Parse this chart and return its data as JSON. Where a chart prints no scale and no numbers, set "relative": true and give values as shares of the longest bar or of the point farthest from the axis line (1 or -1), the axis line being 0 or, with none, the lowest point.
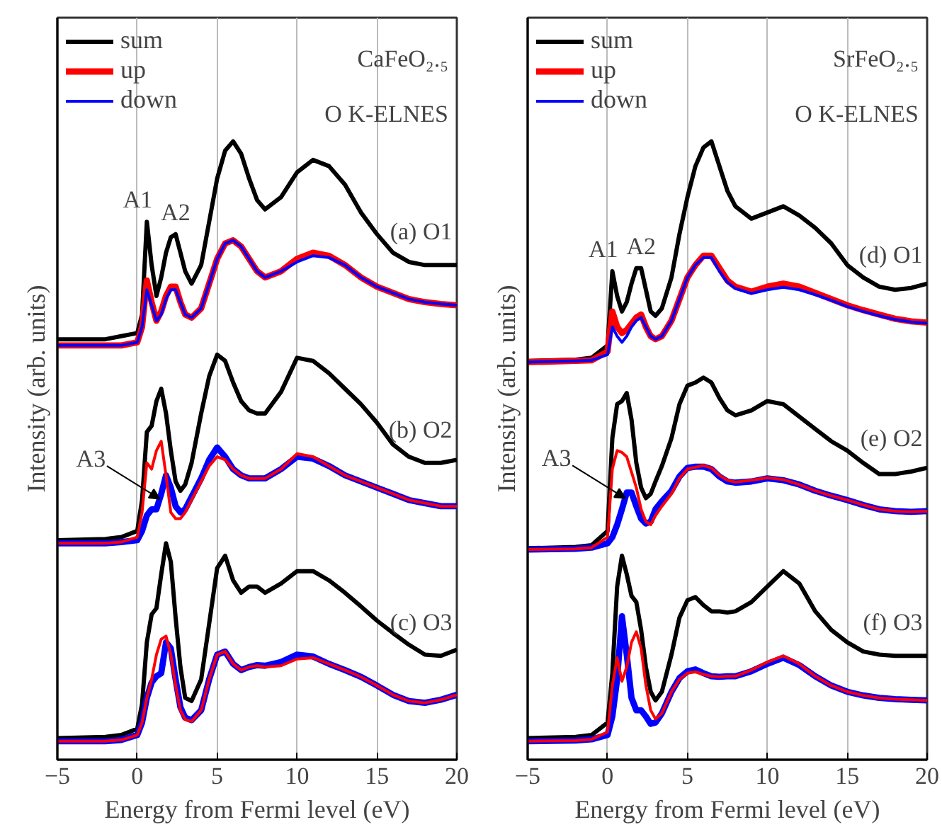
{
  "chart_data": [
    {
      "type": "line",
      "xlabel": "Energy from Fermi level (eV)",
      "ylabel": "Intensity (arb. units)",
      "relative": true,
      "xlim": [
        -5,
        20
      ],
      "xticks": [
        -5,
        0,
        5,
        10,
        15,
        20
      ],
      "grid": "x",
      "legend": "top left",
      "x": [
        -5,
        -2,
        -1,
        0,
        0.3,
        0.6,
        0.9,
        1.2,
        1.5,
        1.8,
        2.1,
        2.4,
        2.7,
        3,
        3.4,
        4,
        4.5,
        5,
        5.5,
        6,
        6.5,
        7,
        7.5,
        8,
        9,
        10,
        11,
        12,
        13,
        14,
        15,
        16,
        17,
        18,
        19,
        20
      ],
      "series": [
        {
          "name": "sum",
          "color": "#000000",
          "values": [
            0.68,
            0.68,
            0.685,
            0.69,
            0.72,
            0.87,
            0.8,
            0.75,
            0.78,
            0.82,
            0.845,
            0.85,
            0.82,
            0.79,
            0.77,
            0.8,
            0.87,
            0.94,
            0.985,
            1.0,
            0.98,
            0.94,
            0.905,
            0.89,
            0.91,
            0.95,
            0.97,
            0.96,
            0.93,
            0.885,
            0.85,
            0.82,
            0.805,
            0.8,
            0.8,
            0.8
          ]
        },
        {
          "name": "up",
          "color": "#ff0000",
          "values": [
            0.67,
            0.67,
            0.67,
            0.675,
            0.7,
            0.775,
            0.74,
            0.71,
            0.725,
            0.75,
            0.765,
            0.765,
            0.74,
            0.72,
            0.715,
            0.73,
            0.77,
            0.81,
            0.835,
            0.84,
            0.83,
            0.81,
            0.79,
            0.78,
            0.79,
            0.81,
            0.82,
            0.815,
            0.8,
            0.78,
            0.765,
            0.755,
            0.745,
            0.74,
            0.737,
            0.735
          ]
        },
        {
          "name": "down",
          "color": "#0000ff",
          "values": [
            0.67,
            0.67,
            0.67,
            0.675,
            0.7,
            0.76,
            0.735,
            0.71,
            0.72,
            0.745,
            0.76,
            0.76,
            0.74,
            0.72,
            0.715,
            0.73,
            0.77,
            0.81,
            0.835,
            0.84,
            0.83,
            0.81,
            0.79,
            0.78,
            0.79,
            0.805,
            0.815,
            0.812,
            0.8,
            0.78,
            0.765,
            0.755,
            0.745,
            0.74,
            0.737,
            0.735
          ]
        },
        {
          "color": "#000000",
          "values": [
            0.355,
            0.357,
            0.36,
            0.37,
            0.42,
            0.53,
            0.54,
            0.58,
            0.6,
            0.56,
            0.5,
            0.45,
            0.435,
            0.445,
            0.48,
            0.56,
            0.62,
            0.655,
            0.645,
            0.61,
            0.58,
            0.565,
            0.56,
            0.56,
            0.595,
            0.65,
            0.645,
            0.625,
            0.6,
            0.575,
            0.545,
            0.51,
            0.49,
            0.48,
            0.48,
            0.485
          ]
        },
        {
          "color": "#0000ff",
          "values": [
            0.35,
            0.35,
            0.352,
            0.355,
            0.37,
            0.395,
            0.405,
            0.405,
            0.43,
            0.46,
            0.44,
            0.41,
            0.4,
            0.405,
            0.425,
            0.455,
            0.485,
            0.505,
            0.49,
            0.47,
            0.46,
            0.455,
            0.455,
            0.455,
            0.47,
            0.49,
            0.487,
            0.475,
            0.46,
            0.45,
            0.44,
            0.43,
            0.42,
            0.415,
            0.41,
            0.41
          ]
        },
        {
          "color": "#ff0000",
          "values": [
            0.35,
            0.35,
            0.352,
            0.36,
            0.4,
            0.48,
            0.47,
            0.5,
            0.515,
            0.46,
            0.4,
            0.39,
            0.39,
            0.4,
            0.42,
            0.45,
            0.475,
            0.49,
            0.485,
            0.47,
            0.46,
            0.455,
            0.455,
            0.455,
            0.47,
            0.495,
            0.49,
            0.475,
            0.46,
            0.45,
            0.44,
            0.43,
            0.42,
            0.415,
            0.41,
            0.41
          ]
        },
        {
          "color": "#000000",
          "values": [
            0.035,
            0.037,
            0.04,
            0.05,
            0.09,
            0.19,
            0.235,
            0.245,
            0.3,
            0.35,
            0.32,
            0.23,
            0.15,
            0.1,
            0.095,
            0.13,
            0.22,
            0.31,
            0.33,
            0.29,
            0.27,
            0.28,
            0.28,
            0.27,
            0.285,
            0.305,
            0.305,
            0.29,
            0.27,
            0.248,
            0.225,
            0.205,
            0.186,
            0.17,
            0.168,
            0.178
          ]
        },
        {
          "color": "#0000ff",
          "values": [
            0.03,
            0.03,
            0.032,
            0.04,
            0.06,
            0.1,
            0.125,
            0.135,
            0.14,
            0.19,
            0.18,
            0.13,
            0.085,
            0.068,
            0.064,
            0.08,
            0.13,
            0.17,
            0.175,
            0.155,
            0.145,
            0.15,
            0.153,
            0.152,
            0.158,
            0.17,
            0.167,
            0.155,
            0.145,
            0.134,
            0.12,
            0.105,
            0.095,
            0.092,
            0.097,
            0.105
          ]
        },
        {
          "color": "#ff0000",
          "values": [
            0.03,
            0.03,
            0.032,
            0.04,
            0.06,
            0.1,
            0.13,
            0.17,
            0.195,
            0.2,
            0.17,
            0.12,
            0.08,
            0.065,
            0.062,
            0.08,
            0.13,
            0.17,
            0.175,
            0.155,
            0.145,
            0.15,
            0.152,
            0.15,
            0.152,
            0.163,
            0.165,
            0.155,
            0.145,
            0.134,
            0.12,
            0.105,
            0.095,
            0.092,
            0.097,
            0.105
          ]
        }
      ],
      "annotations": [
        "CaFeO₂.₅",
        "O K-ELNES",
        {
          "text": "A1",
          "x": 0.6,
          "y": 0.87
        },
        {
          "text": "A2",
          "x": 2.4,
          "y": 0.85
        },
        {
          "text": "(a) O1",
          "x": 19,
          "y": 0.8
        },
        {
          "text": "(b) O2",
          "x": 19,
          "y": 0.48
        },
        {
          "text": "A3",
          "x": 1.4,
          "y": 0.422
        },
        {
          "text": "(c) O3",
          "x": 19,
          "y": 0.168
        }
      ]
    },
    {
      "type": "line",
      "xlabel": "Energy from Fermi level (eV)",
      "ylabel": "Intensity (arb. units)",
      "relative": true,
      "xlim": [
        -5,
        20
      ],
      "xticks": [
        -5,
        0,
        5,
        10,
        15,
        20
      ],
      "grid": "x",
      "legend": "top left",
      "x": [
        -5,
        -2,
        -1,
        0,
        0.3,
        0.6,
        0.9,
        1.2,
        1.5,
        1.8,
        2.1,
        2.4,
        2.7,
        3,
        3.4,
        4,
        4.5,
        5,
        5.5,
        6,
        6.5,
        7,
        7.5,
        8,
        9,
        10,
        11,
        12,
        13,
        14,
        15,
        16,
        17,
        18,
        19,
        20
      ],
      "series": [
        {
          "name": "sum",
          "color": "#000000",
          "values": [
            0.645,
            0.647,
            0.65,
            0.67,
            0.79,
            0.75,
            0.725,
            0.74,
            0.77,
            0.795,
            0.795,
            0.76,
            0.725,
            0.718,
            0.73,
            0.78,
            0.85,
            0.91,
            0.96,
            0.99,
            1.0,
            0.96,
            0.92,
            0.895,
            0.875,
            0.885,
            0.895,
            0.88,
            0.86,
            0.835,
            0.8,
            0.78,
            0.765,
            0.76,
            0.763,
            0.77
          ]
        },
        {
          "name": "up",
          "color": "#ff0000",
          "values": [
            0.643,
            0.645,
            0.646,
            0.66,
            0.725,
            0.7,
            0.69,
            0.695,
            0.705,
            0.715,
            0.72,
            0.7,
            0.685,
            0.68,
            0.685,
            0.71,
            0.745,
            0.78,
            0.8,
            0.815,
            0.815,
            0.795,
            0.775,
            0.765,
            0.757,
            0.765,
            0.77,
            0.765,
            0.755,
            0.745,
            0.735,
            0.727,
            0.72,
            0.713,
            0.709,
            0.707
          ]
        },
        {
          "name": "down",
          "color": "#0000ff",
          "values": [
            0.643,
            0.645,
            0.646,
            0.655,
            0.7,
            0.685,
            0.675,
            0.685,
            0.7,
            0.71,
            0.715,
            0.7,
            0.685,
            0.68,
            0.685,
            0.71,
            0.745,
            0.78,
            0.8,
            0.812,
            0.812,
            0.79,
            0.772,
            0.762,
            0.754,
            0.76,
            0.764,
            0.76,
            0.752,
            0.743,
            0.733,
            0.725,
            0.718,
            0.712,
            0.708,
            0.706
          ]
        },
        {
          "color": "#000000",
          "values": [
            0.342,
            0.344,
            0.347,
            0.37,
            0.52,
            0.575,
            0.58,
            0.593,
            0.55,
            0.48,
            0.44,
            0.423,
            0.43,
            0.45,
            0.475,
            0.52,
            0.575,
            0.605,
            0.61,
            0.618,
            0.61,
            0.585,
            0.565,
            0.557,
            0.565,
            0.58,
            0.575,
            0.555,
            0.535,
            0.515,
            0.5,
            0.48,
            0.462,
            0.462,
            0.466,
            0.472
          ]
        },
        {
          "color": "#0000ff",
          "values": [
            0.34,
            0.341,
            0.343,
            0.35,
            0.36,
            0.38,
            0.405,
            0.432,
            0.432,
            0.41,
            0.39,
            0.382,
            0.385,
            0.405,
            0.418,
            0.435,
            0.458,
            0.472,
            0.474,
            0.474,
            0.47,
            0.458,
            0.45,
            0.448,
            0.45,
            0.455,
            0.452,
            0.445,
            0.435,
            0.427,
            0.42,
            0.412,
            0.405,
            0.402,
            0.401,
            0.402
          ]
        },
        {
          "color": "#ff0000",
          "values": [
            0.34,
            0.341,
            0.343,
            0.36,
            0.47,
            0.5,
            0.497,
            0.49,
            0.465,
            0.44,
            0.405,
            0.385,
            0.38,
            0.395,
            0.41,
            0.43,
            0.455,
            0.47,
            0.473,
            0.476,
            0.472,
            0.46,
            0.452,
            0.449,
            0.452,
            0.456,
            0.453,
            0.445,
            0.435,
            0.427,
            0.42,
            0.412,
            0.405,
            0.402,
            0.401,
            0.402
          ]
        },
        {
          "color": "#000000",
          "values": [
            0.035,
            0.037,
            0.04,
            0.06,
            0.14,
            0.28,
            0.33,
            0.3,
            0.265,
            0.255,
            0.21,
            0.15,
            0.11,
            0.096,
            0.11,
            0.17,
            0.23,
            0.258,
            0.263,
            0.25,
            0.24,
            0.24,
            0.238,
            0.24,
            0.255,
            0.28,
            0.305,
            0.285,
            0.24,
            0.21,
            0.19,
            0.175,
            0.17,
            0.168,
            0.168,
            0.168
          ]
        },
        {
          "color": "#0000ff",
          "values": [
            0.03,
            0.031,
            0.033,
            0.04,
            0.07,
            0.13,
            0.232,
            0.17,
            0.1,
            0.08,
            0.08,
            0.07,
            0.058,
            0.06,
            0.075,
            0.11,
            0.132,
            0.143,
            0.146,
            0.14,
            0.135,
            0.134,
            0.135,
            0.135,
            0.143,
            0.155,
            0.165,
            0.153,
            0.135,
            0.12,
            0.11,
            0.104,
            0.1,
            0.098,
            0.097,
            0.096
          ]
        },
        {
          "color": "#ff0000",
          "values": [
            0.03,
            0.031,
            0.033,
            0.045,
            0.12,
            0.165,
            0.127,
            0.15,
            0.19,
            0.207,
            0.18,
            0.12,
            0.08,
            0.066,
            0.075,
            0.11,
            0.13,
            0.14,
            0.142,
            0.138,
            0.135,
            0.134,
            0.135,
            0.135,
            0.145,
            0.158,
            0.168,
            0.155,
            0.135,
            0.12,
            0.11,
            0.104,
            0.1,
            0.098,
            0.097,
            0.096
          ]
        }
      ],
      "annotations": [
        "SrFeO₂.₅",
        "O K-ELNES",
        {
          "text": "A1",
          "x": 0.3,
          "y": 0.79
        },
        {
          "text": "A2",
          "x": 2.1,
          "y": 0.795
        },
        {
          "text": "(d) O1",
          "x": 19,
          "y": 0.763
        },
        {
          "text": "(e) O2",
          "x": 19,
          "y": 0.466
        },
        {
          "text": "A3",
          "x": 1.1,
          "y": 0.423
        },
        {
          "text": "(f) O3",
          "x": 19,
          "y": 0.168
        }
      ]
    }
  ]
}
